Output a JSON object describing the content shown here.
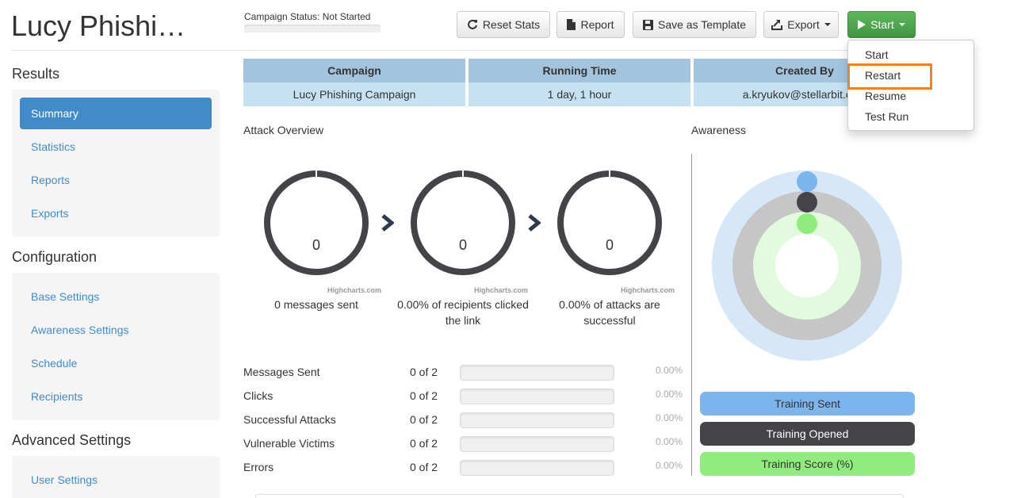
{
  "app": {
    "title": "Lucy Phishi…"
  },
  "status": {
    "label": "Campaign Status:",
    "value": "Not Started"
  },
  "toolbar": {
    "reset_stats": "Reset Stats",
    "report": "Report",
    "save_template": "Save as Template",
    "export": "Export",
    "start": "Start"
  },
  "start_menu": {
    "items": [
      "Start",
      "Restart",
      "Resume",
      "Test Run"
    ],
    "highlighted": "Restart"
  },
  "sidebar": {
    "results_heading": "Results",
    "results_items": [
      "Summary",
      "Statistics",
      "Reports",
      "Exports"
    ],
    "active_item": "Summary",
    "config_heading": "Configuration",
    "config_items": [
      "Base Settings",
      "Awareness Settings",
      "Schedule",
      "Recipients"
    ],
    "advanced_heading": "Advanced Settings",
    "advanced_items": [
      "User Settings"
    ]
  },
  "info_table": {
    "headers": [
      "Campaign",
      "Running Time",
      "Created By"
    ],
    "values": [
      "Lucy Phishing Campaign",
      "1 day, 1 hour",
      "a.kryukov@stellarbit.com"
    ]
  },
  "attack_overview": {
    "label": "Attack Overview",
    "donuts": [
      {
        "value": "0",
        "caption": "0 messages sent"
      },
      {
        "value": "0",
        "caption": "0.00% of recipients clicked the link"
      },
      {
        "value": "0",
        "caption": "0.00% of attacks are successful"
      }
    ],
    "credit": "Highcharts.com"
  },
  "stats": [
    {
      "label": "Messages Sent",
      "count": "0 of 2",
      "percent": "0.00%",
      "fill": 0
    },
    {
      "label": "Clicks",
      "count": "0 of 2",
      "percent": "0.00%",
      "fill": 0
    },
    {
      "label": "Successful Attacks",
      "count": "0 of 2",
      "percent": "0.00%",
      "fill": 0
    },
    {
      "label": "Vulnerable Victims",
      "count": "0 of 2",
      "percent": "0.00%",
      "fill": 0
    },
    {
      "label": "Errors",
      "count": "0 of 2",
      "percent": "0.00%",
      "fill": 0
    }
  ],
  "awareness": {
    "label": "Awareness",
    "legend": [
      "Training Sent",
      "Training Opened",
      "Training Score (%)"
    ],
    "colors": {
      "sent": "#7cb5ec",
      "opened": "#434348",
      "score": "#90ed7d"
    }
  },
  "colors": {
    "primary": "#428bca",
    "success": "#5cb85c",
    "highlight": "#f5821f"
  }
}
